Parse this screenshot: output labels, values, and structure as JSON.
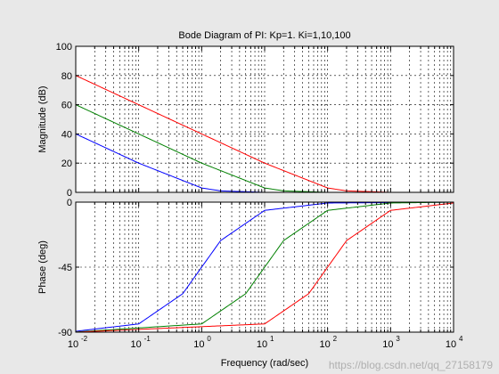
{
  "chart_data": {
    "type": "line",
    "title": "Bode Diagram of PI: Kp=1. Ki=1,10,100",
    "xlabel": "Frequency  (rad/sec)",
    "x_scale": "log",
    "xlim": [
      0.01,
      10000
    ],
    "x_ticks": [
      {
        "base": "10",
        "exp": "-2"
      },
      {
        "base": "10",
        "exp": "-1"
      },
      {
        "base": "10",
        "exp": "0"
      },
      {
        "base": "10",
        "exp": "1"
      },
      {
        "base": "10",
        "exp": "2"
      },
      {
        "base": "10",
        "exp": "3"
      },
      {
        "base": "10",
        "exp": "4"
      }
    ],
    "grid": true,
    "panels": [
      {
        "ylabel": "Magnitude (dB)",
        "ylim": [
          0,
          100
        ],
        "y_ticks": [
          "0",
          "20",
          "40",
          "60",
          "80",
          "100"
        ]
      },
      {
        "ylabel": "Phase (deg)",
        "ylim": [
          -90,
          0
        ],
        "y_ticks": [
          "-90",
          "-45",
          "0"
        ]
      }
    ],
    "series": [
      {
        "color": "#0000ff",
        "magnitude_db": [
          {
            "x": 0.01,
            "y": 40
          },
          {
            "x": 0.1,
            "y": 20
          },
          {
            "x": 1,
            "y": 3
          },
          {
            "x": 2,
            "y": 1
          },
          {
            "x": 10,
            "y": 0
          },
          {
            "x": 10000,
            "y": 0
          }
        ],
        "phase_deg": [
          {
            "x": 0.01,
            "y": -89.4
          },
          {
            "x": 0.1,
            "y": -84.3
          },
          {
            "x": 0.5,
            "y": -63.4
          },
          {
            "x": 1,
            "y": -45
          },
          {
            "x": 2,
            "y": -26.6
          },
          {
            "x": 10,
            "y": -5.7
          },
          {
            "x": 100,
            "y": -0.6
          },
          {
            "x": 10000,
            "y": 0
          }
        ]
      },
      {
        "color": "#008000",
        "magnitude_db": [
          {
            "x": 0.01,
            "y": 60
          },
          {
            "x": 1,
            "y": 20
          },
          {
            "x": 10,
            "y": 3
          },
          {
            "x": 20,
            "y": 1
          },
          {
            "x": 100,
            "y": 0
          },
          {
            "x": 10000,
            "y": 0
          }
        ],
        "phase_deg": [
          {
            "x": 0.01,
            "y": -89.9
          },
          {
            "x": 1,
            "y": -84.3
          },
          {
            "x": 5,
            "y": -63.4
          },
          {
            "x": 10,
            "y": -45
          },
          {
            "x": 20,
            "y": -26.6
          },
          {
            "x": 100,
            "y": -5.7
          },
          {
            "x": 1000,
            "y": -0.6
          },
          {
            "x": 10000,
            "y": 0
          }
        ]
      },
      {
        "color": "#ff0000",
        "magnitude_db": [
          {
            "x": 0.01,
            "y": 80
          },
          {
            "x": 10,
            "y": 20
          },
          {
            "x": 100,
            "y": 3
          },
          {
            "x": 200,
            "y": 1
          },
          {
            "x": 1000,
            "y": 0
          },
          {
            "x": 10000,
            "y": 0
          }
        ],
        "phase_deg": [
          {
            "x": 0.01,
            "y": -90
          },
          {
            "x": 10,
            "y": -84.3
          },
          {
            "x": 50,
            "y": -63.4
          },
          {
            "x": 100,
            "y": -45
          },
          {
            "x": 200,
            "y": -26.6
          },
          {
            "x": 1000,
            "y": -5.7
          },
          {
            "x": 10000,
            "y": -0.6
          }
        ]
      }
    ]
  },
  "watermark": "https://blog.csdn.net/qq_27158179"
}
